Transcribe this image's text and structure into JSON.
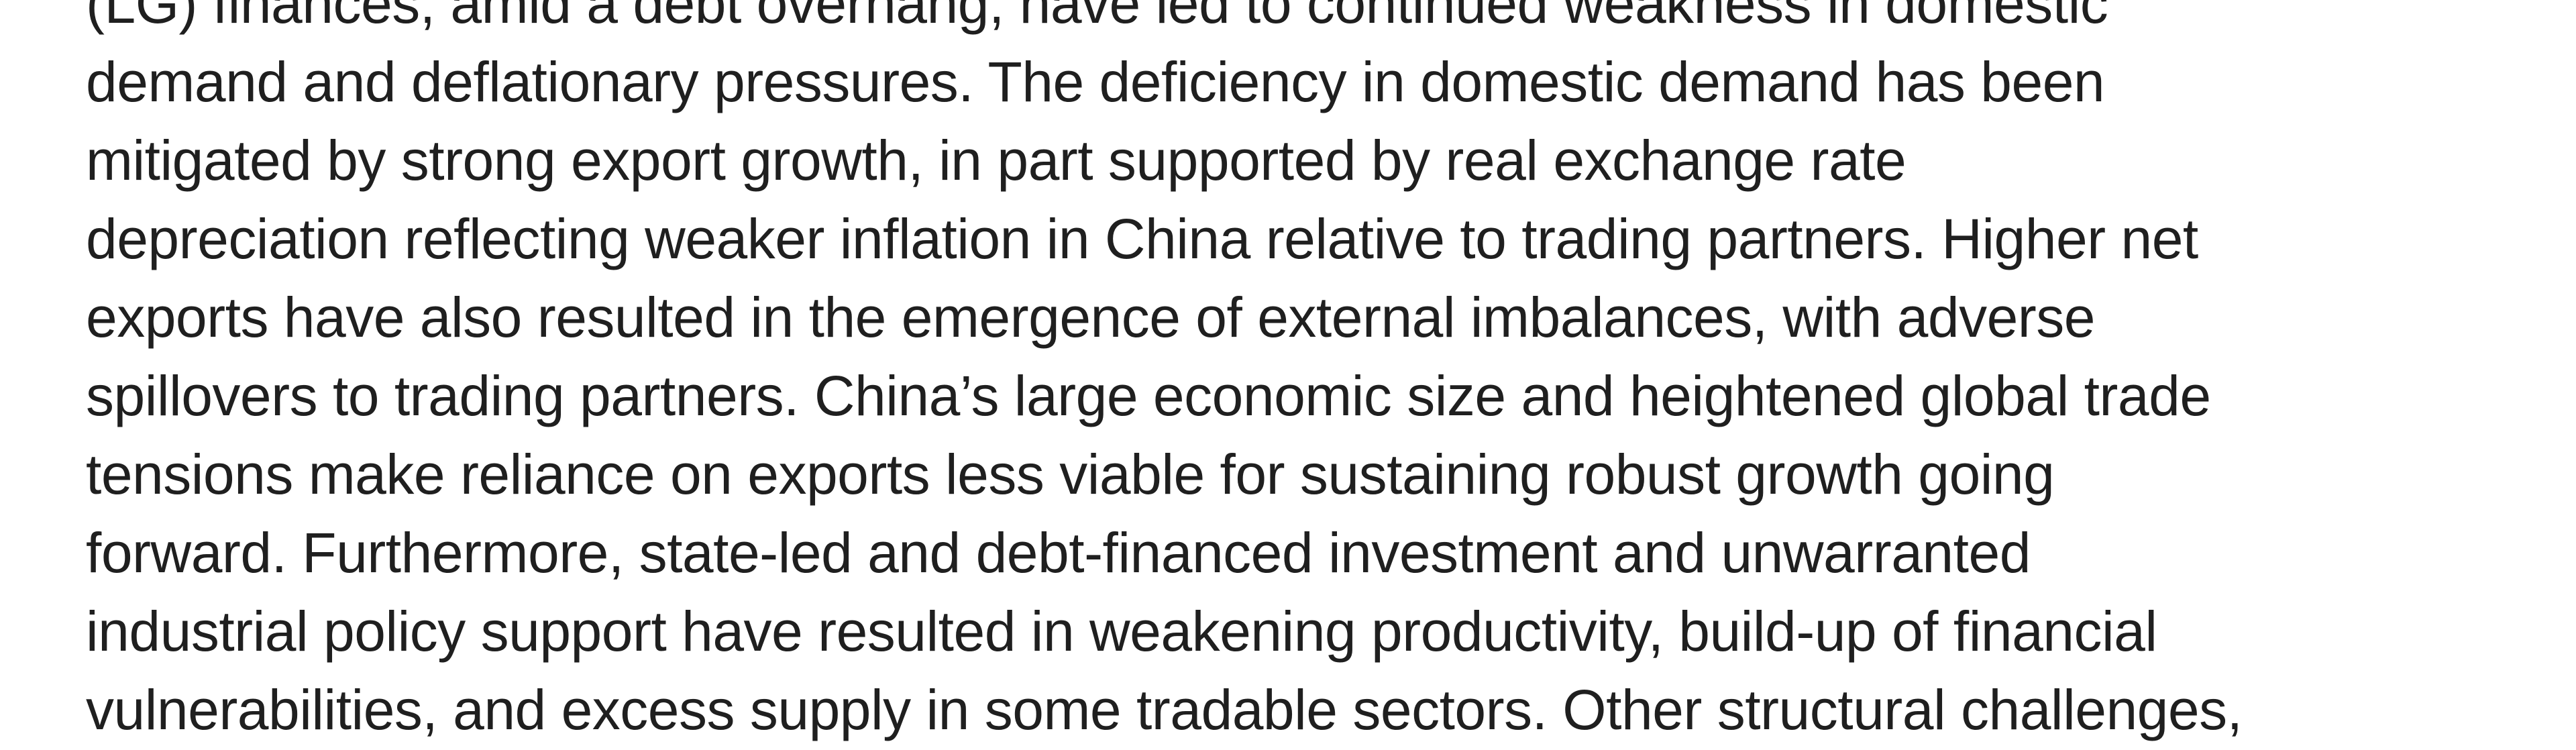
{
  "page": {
    "background_color": "#ffffff",
    "text_color": "#1f1f1f"
  },
  "paragraph": {
    "lines": [
      "(LG) finances, amid a debt overhang, have led to continued weakness in domestic",
      "demand and deflationary pressures. The deficiency in domestic demand has been",
      "mitigated by strong export growth, in part supported by real exchange rate",
      "depreciation reflecting weaker inflation in China relative to trading partners. Higher net",
      "exports have also resulted in the emergence of external imbalances, with adverse",
      "spillovers to trading partners. China’s large economic size and heightened global trade",
      "tensions make reliance on exports less viable for sustaining robust growth going",
      "forward. Furthermore, state-led and debt-financed investment and unwarranted",
      "industrial policy support have resulted in weakening productivity, build-up of financial",
      "vulnerabilities, and excess supply in some tradable sectors. Other structural challenges,"
    ]
  }
}
